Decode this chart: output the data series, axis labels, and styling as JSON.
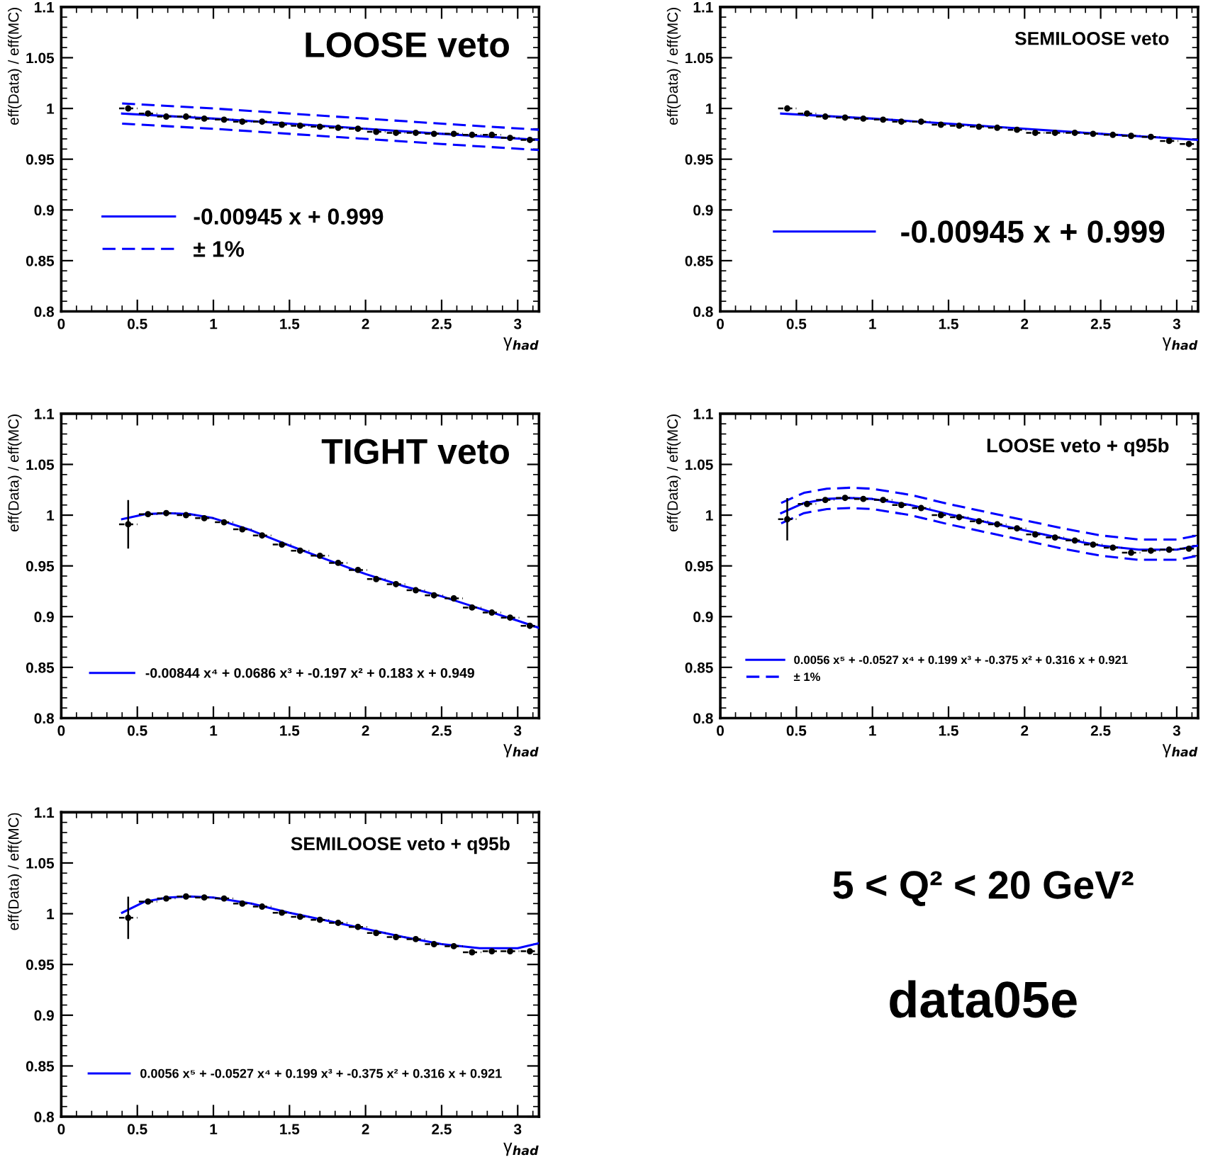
{
  "chart_data": [
    {
      "type": "scatter",
      "title": "LOOSE veto",
      "xlabel": "γ$_{had}$",
      "ylabel": "eff(Data) / eff(MC)",
      "xlim": [
        0,
        3.14
      ],
      "xticks": [
        0,
        0.5,
        1,
        1.5,
        2,
        2.5,
        3
      ],
      "ylim": [
        0.8,
        1.1
      ],
      "yticks": [
        0.8,
        0.85,
        0.9,
        0.95,
        1,
        1.05,
        1.1
      ],
      "legend": "lower left",
      "x": [
        0.44,
        0.57,
        0.69,
        0.82,
        0.94,
        1.07,
        1.19,
        1.32,
        1.45,
        1.57,
        1.7,
        1.82,
        1.95,
        2.07,
        2.2,
        2.33,
        2.45,
        2.58,
        2.7,
        2.83,
        2.95,
        3.08
      ],
      "series": [
        {
          "type": "scatter",
          "marker": "circle",
          "color": "#000000",
          "values": [
            1.0,
            0.995,
            0.992,
            0.992,
            0.99,
            0.989,
            0.987,
            0.987,
            0.984,
            0.983,
            0.982,
            0.981,
            0.98,
            0.977,
            0.976,
            0.976,
            0.975,
            0.975,
            0.974,
            0.974,
            0.971,
            0.969
          ],
          "xerrors": [
            0.06,
            0.06,
            0.06,
            0.06,
            0.06,
            0.06,
            0.06,
            0.06,
            0.06,
            0.06,
            0.06,
            0.06,
            0.06,
            0.06,
            0.06,
            0.06,
            0.06,
            0.06,
            0.06,
            0.06,
            0.06,
            0.06
          ]
        },
        {
          "type": "line",
          "name": "-0.00945 x + 0.999",
          "color": "#0000ff",
          "line_style": "solid",
          "x": [
            0.4,
            1,
            1.5,
            2,
            2.5,
            3.14
          ],
          "values": [
            0.995,
            0.99,
            0.985,
            0.98,
            0.975,
            0.969
          ]
        },
        {
          "type": "line",
          "name": "± 1%",
          "color": "#0000ff",
          "line_style": "dashed",
          "x": [
            0.4,
            1,
            1.5,
            2,
            2.5,
            3.14
          ],
          "values": [
            1.005,
            1.0,
            0.995,
            0.99,
            0.985,
            0.979
          ]
        },
        {
          "type": "line",
          "color": "#0000ff",
          "line_style": "dashed",
          "x": [
            0.4,
            1,
            1.5,
            2,
            2.5,
            3.14
          ],
          "values": [
            0.985,
            0.98,
            0.975,
            0.97,
            0.965,
            0.959
          ]
        }
      ]
    },
    {
      "type": "scatter",
      "title": "SEMILOOSE veto",
      "xlabel": "γ$_{had}$",
      "ylabel": "eff(Data) / eff(MC)",
      "xlim": [
        0,
        3.14
      ],
      "xticks": [
        0,
        0.5,
        1,
        1.5,
        2,
        2.5,
        3
      ],
      "ylim": [
        0.8,
        1.1
      ],
      "yticks": [
        0.8,
        0.85,
        0.9,
        0.95,
        1,
        1.05,
        1.1
      ],
      "legend": "lower left",
      "x": [
        0.44,
        0.57,
        0.69,
        0.82,
        0.94,
        1.07,
        1.19,
        1.32,
        1.45,
        1.57,
        1.7,
        1.82,
        1.95,
        2.07,
        2.2,
        2.33,
        2.45,
        2.58,
        2.7,
        2.83,
        2.95,
        3.08
      ],
      "series": [
        {
          "type": "scatter",
          "marker": "circle",
          "color": "#000000",
          "values": [
            1.0,
            0.995,
            0.992,
            0.991,
            0.99,
            0.989,
            0.987,
            0.987,
            0.984,
            0.983,
            0.982,
            0.981,
            0.979,
            0.976,
            0.976,
            0.976,
            0.975,
            0.974,
            0.973,
            0.972,
            0.968,
            0.965
          ],
          "xerrors": [
            0.06,
            0.06,
            0.06,
            0.06,
            0.06,
            0.06,
            0.06,
            0.06,
            0.06,
            0.06,
            0.06,
            0.06,
            0.06,
            0.06,
            0.06,
            0.06,
            0.06,
            0.06,
            0.06,
            0.06,
            0.06,
            0.06
          ]
        },
        {
          "type": "line",
          "name": "-0.00945 x + 0.999",
          "color": "#0000ff",
          "line_style": "solid",
          "x": [
            0.4,
            1,
            1.5,
            2,
            2.5,
            3.14
          ],
          "values": [
            0.995,
            0.99,
            0.985,
            0.98,
            0.975,
            0.969
          ]
        }
      ]
    },
    {
      "type": "scatter",
      "title": "TIGHT veto",
      "xlabel": "γ$_{had}$",
      "ylabel": "eff(Data) / eff(MC)",
      "xlim": [
        0,
        3.14
      ],
      "xticks": [
        0,
        0.5,
        1,
        1.5,
        2,
        2.5,
        3
      ],
      "ylim": [
        0.8,
        1.1
      ],
      "yticks": [
        0.8,
        0.85,
        0.9,
        0.95,
        1,
        1.05,
        1.1
      ],
      "legend": "lower left",
      "x": [
        0.44,
        0.57,
        0.69,
        0.82,
        0.94,
        1.07,
        1.19,
        1.32,
        1.45,
        1.57,
        1.7,
        1.82,
        1.95,
        2.07,
        2.2,
        2.33,
        2.45,
        2.58,
        2.7,
        2.83,
        2.95,
        3.08
      ],
      "series": [
        {
          "type": "scatter",
          "marker": "circle",
          "color": "#000000",
          "values": [
            0.991,
            1.001,
            1.002,
            1.0,
            0.997,
            0.993,
            0.986,
            0.98,
            0.971,
            0.965,
            0.96,
            0.953,
            0.946,
            0.937,
            0.932,
            0.926,
            0.921,
            0.918,
            0.909,
            0.904,
            0.899,
            0.891
          ],
          "errors": [
            0.023,
            null,
            null,
            null,
            null,
            null,
            null,
            null,
            null,
            null,
            null,
            null,
            null,
            null,
            null,
            null,
            null,
            null,
            null,
            null,
            null,
            null
          ],
          "xerrors": [
            0.06,
            0.06,
            0.06,
            0.06,
            0.06,
            0.06,
            0.06,
            0.06,
            0.06,
            0.06,
            0.06,
            0.06,
            0.06,
            0.06,
            0.06,
            0.06,
            0.06,
            0.06,
            0.06,
            0.06,
            0.06,
            0.06
          ]
        },
        {
          "type": "line",
          "name": "-0.00844 x⁴ + 0.0686 x³ + -0.197 x² + 0.183 x + 0.949",
          "color": "#0000ff",
          "line_style": "solid",
          "x": [
            0.4,
            0.55,
            0.7,
            0.85,
            1.0,
            1.25,
            1.5,
            1.75,
            2.0,
            2.25,
            2.5,
            2.75,
            3.0,
            3.14
          ],
          "values": [
            0.996,
            1.001,
            1.002,
            1.001,
            0.997,
            0.985,
            0.97,
            0.956,
            0.942,
            0.93,
            0.92,
            0.908,
            0.896,
            0.889
          ]
        }
      ]
    },
    {
      "type": "scatter",
      "title": "LOOSE veto + q95b",
      "xlabel": "γ$_{had}$",
      "ylabel": "eff(Data) / eff(MC)",
      "xlim": [
        0,
        3.14
      ],
      "xticks": [
        0,
        0.5,
        1,
        1.5,
        2,
        2.5,
        3
      ],
      "ylim": [
        0.8,
        1.1
      ],
      "yticks": [
        0.8,
        0.85,
        0.9,
        0.95,
        1,
        1.05,
        1.1
      ],
      "legend": "lower left",
      "x": [
        0.44,
        0.57,
        0.69,
        0.82,
        0.94,
        1.07,
        1.19,
        1.32,
        1.45,
        1.57,
        1.7,
        1.82,
        1.95,
        2.07,
        2.2,
        2.33,
        2.45,
        2.58,
        2.7,
        2.83,
        2.95,
        3.08
      ],
      "series": [
        {
          "type": "scatter",
          "marker": "circle",
          "color": "#000000",
          "values": [
            0.996,
            1.011,
            1.015,
            1.017,
            1.016,
            1.015,
            1.01,
            1.007,
            1.0,
            0.998,
            0.994,
            0.991,
            0.987,
            0.981,
            0.978,
            0.975,
            0.971,
            0.968,
            0.963,
            0.965,
            0.966,
            0.967
          ],
          "errors": [
            0.02,
            null,
            null,
            null,
            null,
            null,
            null,
            null,
            null,
            null,
            null,
            null,
            null,
            null,
            null,
            null,
            null,
            null,
            null,
            null,
            null,
            null
          ],
          "xerrors": [
            0.06,
            0.06,
            0.06,
            0.06,
            0.06,
            0.06,
            0.06,
            0.06,
            0.06,
            0.06,
            0.06,
            0.06,
            0.06,
            0.06,
            0.06,
            0.06,
            0.06,
            0.06,
            0.06,
            0.06,
            0.06,
            0.06
          ]
        },
        {
          "type": "line",
          "name": "0.0056 x⁵ + -0.0527 x⁴ + 0.199 x³ + -0.375 x² + 0.316 x + 0.921",
          "color": "#0000ff",
          "line_style": "solid",
          "x": [
            0.4,
            0.55,
            0.7,
            0.85,
            1.0,
            1.25,
            1.5,
            1.75,
            2.0,
            2.25,
            2.5,
            2.75,
            3.0,
            3.14
          ],
          "values": [
            1.002,
            1.012,
            1.016,
            1.017,
            1.016,
            1.01,
            1.001,
            0.993,
            0.985,
            0.977,
            0.97,
            0.966,
            0.966,
            0.97
          ]
        },
        {
          "type": "line",
          "name": "± 1%",
          "color": "#0000ff",
          "line_style": "dashed",
          "x": [
            0.4,
            0.55,
            0.7,
            0.85,
            1.0,
            1.25,
            1.5,
            1.75,
            2.0,
            2.25,
            2.5,
            2.75,
            3.0,
            3.14
          ],
          "values": [
            1.012,
            1.022,
            1.026,
            1.027,
            1.026,
            1.02,
            1.011,
            1.003,
            0.995,
            0.987,
            0.98,
            0.976,
            0.976,
            0.98
          ]
        },
        {
          "type": "line",
          "color": "#0000ff",
          "line_style": "dashed",
          "x": [
            0.4,
            0.55,
            0.7,
            0.85,
            1.0,
            1.25,
            1.5,
            1.75,
            2.0,
            2.25,
            2.5,
            2.75,
            3.0,
            3.14
          ],
          "values": [
            0.992,
            1.002,
            1.006,
            1.007,
            1.006,
            1.0,
            0.991,
            0.983,
            0.975,
            0.967,
            0.96,
            0.956,
            0.956,
            0.96
          ]
        }
      ]
    },
    {
      "type": "scatter",
      "title": "SEMILOOSE veto + q95b",
      "xlabel": "γ$_{had}$",
      "ylabel": "eff(Data) / eff(MC)",
      "xlim": [
        0,
        3.14
      ],
      "xticks": [
        0,
        0.5,
        1,
        1.5,
        2,
        2.5,
        3
      ],
      "ylim": [
        0.8,
        1.1
      ],
      "yticks": [
        0.8,
        0.85,
        0.9,
        0.95,
        1,
        1.05,
        1.1
      ],
      "legend": "lower left",
      "x": [
        0.44,
        0.57,
        0.69,
        0.82,
        0.94,
        1.07,
        1.19,
        1.32,
        1.45,
        1.57,
        1.7,
        1.82,
        1.95,
        2.07,
        2.2,
        2.33,
        2.45,
        2.58,
        2.7,
        2.83,
        2.95,
        3.08
      ],
      "series": [
        {
          "type": "scatter",
          "marker": "circle",
          "color": "#000000",
          "values": [
            0.996,
            1.012,
            1.015,
            1.017,
            1.016,
            1.015,
            1.01,
            1.007,
            1.001,
            0.997,
            0.994,
            0.991,
            0.987,
            0.981,
            0.977,
            0.975,
            0.97,
            0.968,
            0.962,
            0.963,
            0.963,
            0.963
          ],
          "errors": [
            0.02,
            null,
            null,
            null,
            null,
            null,
            null,
            null,
            null,
            null,
            null,
            null,
            null,
            null,
            null,
            null,
            null,
            null,
            null,
            null,
            null,
            null
          ],
          "xerrors": [
            0.06,
            0.06,
            0.06,
            0.06,
            0.06,
            0.06,
            0.06,
            0.06,
            0.06,
            0.06,
            0.06,
            0.06,
            0.06,
            0.06,
            0.06,
            0.06,
            0.06,
            0.06,
            0.06,
            0.06,
            0.06,
            0.06
          ]
        },
        {
          "type": "line",
          "name": "0.0056 x⁵ + -0.0527 x⁴ + 0.199 x³ + -0.375 x² + 0.316 x + 0.921",
          "color": "#0000ff",
          "line_style": "solid",
          "x": [
            0.4,
            0.55,
            0.7,
            0.85,
            1.0,
            1.25,
            1.5,
            1.75,
            2.0,
            2.25,
            2.5,
            2.75,
            3.0,
            3.14
          ],
          "values": [
            1.001,
            1.012,
            1.016,
            1.017,
            1.016,
            1.01,
            1.001,
            0.993,
            0.985,
            0.977,
            0.97,
            0.966,
            0.966,
            0.971
          ]
        }
      ]
    },
    {
      "type": "other",
      "annotations": [
        "5 < Q² < 20 GeV²",
        "data05e"
      ]
    }
  ]
}
